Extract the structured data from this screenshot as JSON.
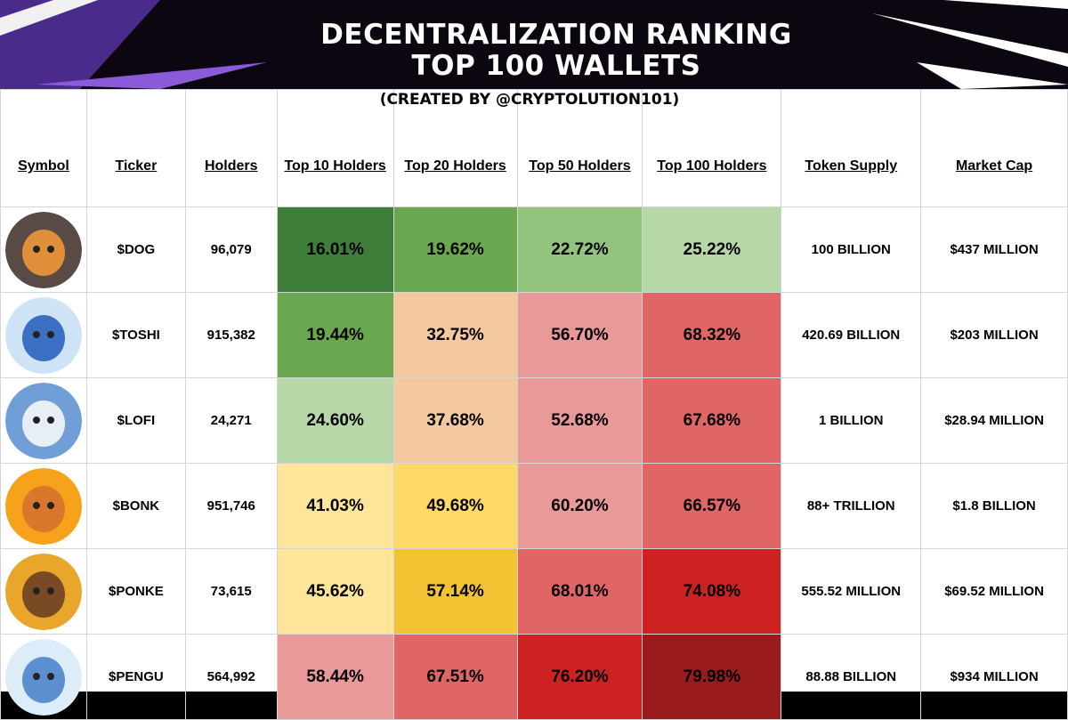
{
  "title": {
    "line1": "DECENTRALIZATION RANKING",
    "line2": "TOP 100 WALLETS"
  },
  "credit": "(CREATED BY @CRYPTOLUTION101)",
  "headers": {
    "symbol": "Symbol",
    "ticker": "Ticker",
    "holders": "Holders",
    "top10": "Top 10 Holders",
    "top20": "Top 20 Holders",
    "top50": "Top 50 Holders",
    "top100": "Top 100 Holders",
    "supply": "Token Supply",
    "mcap": "Market Cap"
  },
  "rows": [
    {
      "ticker": "$DOG",
      "holders": "96,079",
      "top10": "16.01%",
      "top20": "19.62%",
      "top50": "22.72%",
      "top100": "25.22%",
      "supply": "100 BILLION",
      "mcap": "$437 MILLION",
      "avatar_icon": "dog-in-orange-hoodie-icon",
      "avatar_bg": "#5a4a45",
      "avatar_fg": "#e0903a",
      "colors": [
        "#3e7d3a",
        "#6aa84f",
        "#93c47d",
        "#b6d7a8"
      ]
    },
    {
      "ticker": "$TOSHI",
      "holders": "915,382",
      "top10": "19.44%",
      "top20": "32.75%",
      "top50": "56.70%",
      "top100": "68.32%",
      "supply": "420.69 BILLION",
      "mcap": "$203 MILLION",
      "avatar_icon": "blue-cat-icon",
      "avatar_bg": "#cfe3f7",
      "avatar_fg": "#3a6fc4",
      "colors": [
        "#6aa84f",
        "#f5c9a0",
        "#ea9999",
        "#e06666"
      ]
    },
    {
      "ticker": "$LOFI",
      "holders": "24,271",
      "top10": "24.60%",
      "top20": "37.68%",
      "top50": "52.68%",
      "top100": "67.68%",
      "supply": "1 BILLION",
      "mcap": "$28.94 MILLION",
      "avatar_icon": "yeti-icon",
      "avatar_bg": "#6f9fd6",
      "avatar_fg": "#e8eef5",
      "colors": [
        "#b6d7a8",
        "#f5c9a0",
        "#ea9999",
        "#e06666"
      ]
    },
    {
      "ticker": "$BONK",
      "holders": "951,746",
      "top10": "41.03%",
      "top20": "49.68%",
      "top50": "60.20%",
      "top100": "66.57%",
      "supply": "88+ TRILLION",
      "mcap": "$1.8 BILLION",
      "avatar_icon": "shiba-dog-icon",
      "avatar_bg": "#f6a21a",
      "avatar_fg": "#d9782d",
      "colors": [
        "#ffe599",
        "#ffd966",
        "#ea9999",
        "#e06666"
      ]
    },
    {
      "ticker": "$PONKE",
      "holders": "73,615",
      "top10": "45.62%",
      "top20": "57.14%",
      "top50": "68.01%",
      "top100": "74.08%",
      "supply": "555.52 MILLION",
      "mcap": "$69.52 MILLION",
      "avatar_icon": "monkey-icon",
      "avatar_bg": "#e8a62a",
      "avatar_fg": "#7a4a24",
      "colors": [
        "#ffe599",
        "#f1c232",
        "#e06666",
        "#cc2222"
      ]
    },
    {
      "ticker": "$PENGU",
      "holders": "564,992",
      "top10": "58.44%",
      "top20": "67.51%",
      "top50": "76.20%",
      "top100": "79.98%",
      "supply": "88.88 BILLION",
      "mcap": "$934 MILLION",
      "avatar_icon": "penguin-icon",
      "avatar_bg": "#dcecf8",
      "avatar_fg": "#5b8fd0",
      "colors": [
        "#ea9999",
        "#e06666",
        "#cc2222",
        "#991b1b"
      ]
    }
  ],
  "chart_data": {
    "type": "table",
    "title": "DECENTRALIZATION RANKING TOP 100 WALLETS",
    "subtitle": "(CREATED BY @CRYPTOLUTION101)",
    "columns": [
      "Symbol",
      "Ticker",
      "Holders",
      "Top 10 Holders",
      "Top 20 Holders",
      "Top 50 Holders",
      "Top 100 Holders",
      "Token Supply",
      "Market Cap"
    ],
    "rows": [
      [
        "$DOG",
        96079,
        16.01,
        19.62,
        22.72,
        25.22,
        "100 BILLION",
        "$437 MILLION"
      ],
      [
        "$TOSHI",
        915382,
        19.44,
        32.75,
        56.7,
        68.32,
        "420.69 BILLION",
        "$203 MILLION"
      ],
      [
        "$LOFI",
        24271,
        24.6,
        37.68,
        52.68,
        67.68,
        "1 BILLION",
        "$28.94 MILLION"
      ],
      [
        "$BONK",
        951746,
        41.03,
        49.68,
        60.2,
        66.57,
        "88+ TRILLION",
        "$1.8 BILLION"
      ],
      [
        "$PONKE",
        73615,
        45.62,
        57.14,
        68.01,
        74.08,
        "555.52 MILLION",
        "$69.52 MILLION"
      ],
      [
        "$PENGU",
        564992,
        58.44,
        67.51,
        76.2,
        79.98,
        "88.88 BILLION",
        "$934 MILLION"
      ]
    ]
  }
}
